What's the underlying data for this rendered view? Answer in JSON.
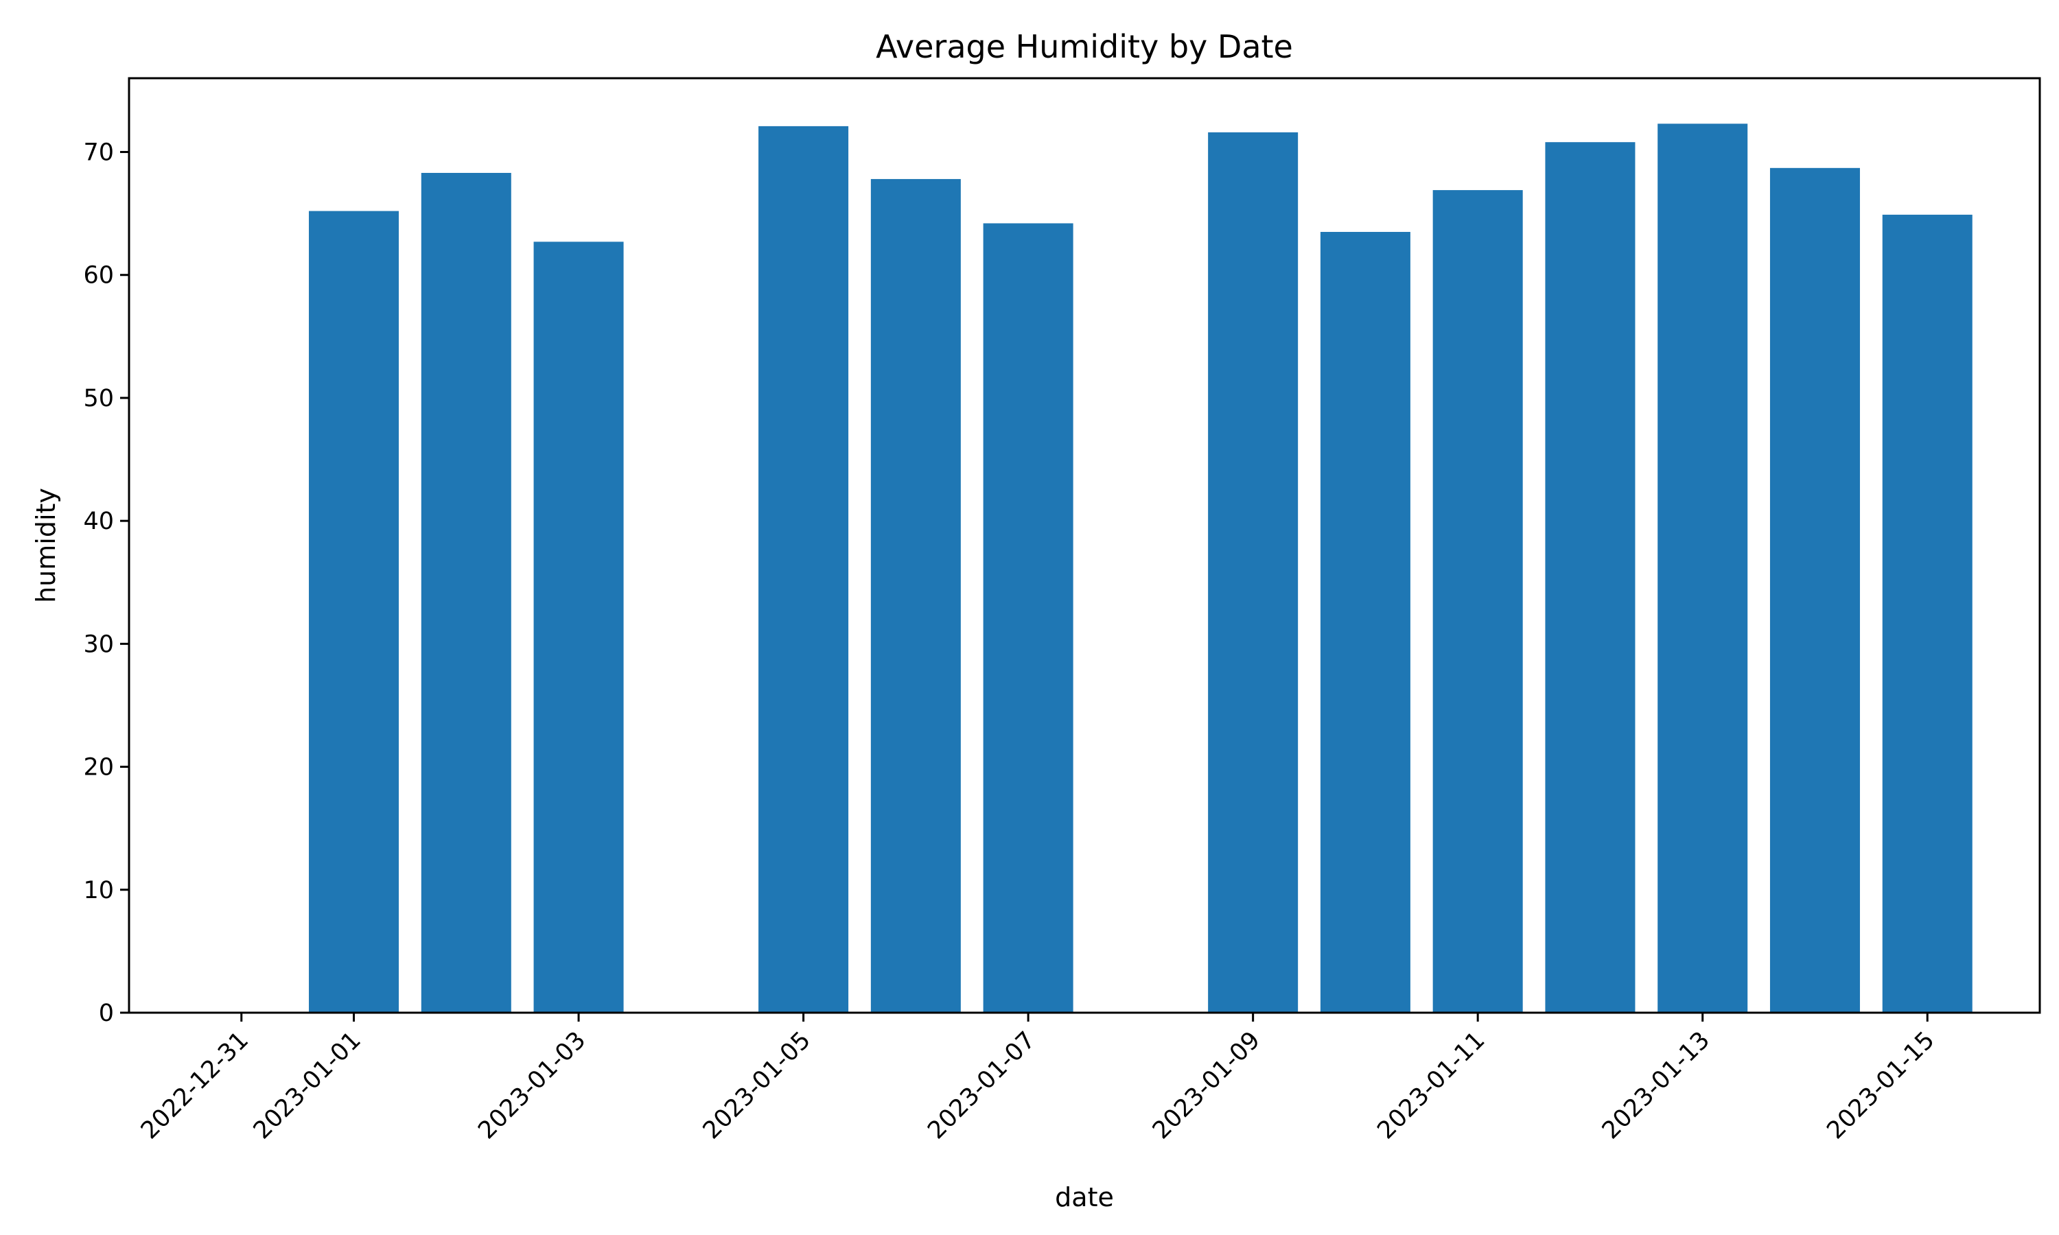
{
  "chart_data": {
    "type": "bar",
    "title": "Average Humidity by Date",
    "xlabel": "date",
    "ylabel": "humidity",
    "x_axis_type": "date",
    "xlim": [
      "2022-12-30",
      "2023-01-16"
    ],
    "ylim": [
      0,
      76
    ],
    "yticks": [
      0,
      10,
      20,
      30,
      40,
      50,
      60,
      70
    ],
    "xticks": [
      "2022-12-31",
      "2023-01-01",
      "2023-01-03",
      "2023-01-05",
      "2023-01-07",
      "2023-01-09",
      "2023-01-11",
      "2023-01-13",
      "2023-01-15"
    ],
    "bar_color": "#1f77b4",
    "grid": false,
    "legend": false,
    "categories": [
      "2023-01-01",
      "2023-01-02",
      "2023-01-03",
      "2023-01-05",
      "2023-01-06",
      "2023-01-07",
      "2023-01-09",
      "2023-01-10",
      "2023-01-11",
      "2023-01-12",
      "2023-01-13",
      "2023-01-14",
      "2023-01-15"
    ],
    "values": [
      65.2,
      68.3,
      62.7,
      72.1,
      67.8,
      64.2,
      71.6,
      63.5,
      66.9,
      70.8,
      72.3,
      68.7,
      64.9
    ]
  }
}
